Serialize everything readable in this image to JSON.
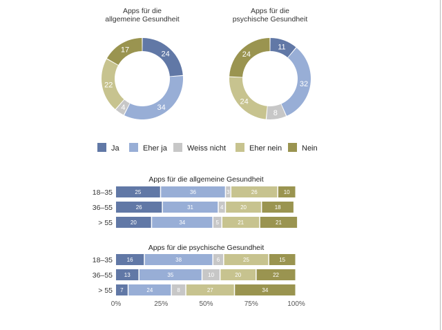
{
  "colors": {
    "Ja": "#6178a6",
    "Eher ja": "#98aed6",
    "Weiss nicht": "#c7c7c7",
    "Eher nein": "#c7c38f",
    "Nein": "#9a9450"
  },
  "chart_data": [
    {
      "type": "pie",
      "variant": "donut",
      "title": "Apps für die allgemeine Gesundheit",
      "title_lines": [
        "Apps für die",
        "allgemeine Gesundheit"
      ],
      "categories": [
        "Ja",
        "Eher ja",
        "Weiss nicht",
        "Eher nein",
        "Nein"
      ],
      "values": [
        24,
        34,
        4,
        22,
        17
      ]
    },
    {
      "type": "pie",
      "variant": "donut",
      "title": "Apps für die psychische Gesundheit",
      "title_lines": [
        "Apps für die",
        "psychische Gesundheit"
      ],
      "categories": [
        "Ja",
        "Eher ja",
        "Weiss nicht",
        "Eher nein",
        "Nein"
      ],
      "values": [
        11,
        32,
        8,
        24,
        24
      ]
    },
    {
      "type": "bar",
      "orientation": "horizontal",
      "stacked": "percent",
      "title": "Apps für die allgemeine Gesundheit",
      "categories": [
        "18–35",
        "36–55",
        "> 55"
      ],
      "series": [
        {
          "name": "Ja",
          "values": [
            25,
            26,
            20
          ]
        },
        {
          "name": "Eher ja",
          "values": [
            36,
            31,
            34
          ]
        },
        {
          "name": "Weiss nicht",
          "values": [
            3,
            4,
            5
          ]
        },
        {
          "name": "Eher nein",
          "values": [
            26,
            20,
            21
          ]
        },
        {
          "name": "Nein",
          "values": [
            10,
            18,
            21
          ]
        }
      ],
      "xlim": [
        0,
        100
      ],
      "xticks": [
        "0%",
        "25%",
        "50%",
        "75%",
        "100%"
      ]
    },
    {
      "type": "bar",
      "orientation": "horizontal",
      "stacked": "percent",
      "title": "Apps für die psychische Gesundheit",
      "categories": [
        "18–35",
        "36–55",
        "> 55"
      ],
      "series": [
        {
          "name": "Ja",
          "values": [
            16,
            13,
            7
          ]
        },
        {
          "name": "Eher ja",
          "values": [
            38,
            35,
            24
          ]
        },
        {
          "name": "Weiss nicht",
          "values": [
            6,
            10,
            8
          ]
        },
        {
          "name": "Eher nein",
          "values": [
            25,
            20,
            27
          ]
        },
        {
          "name": "Nein",
          "values": [
            15,
            22,
            34
          ]
        }
      ],
      "xlim": [
        0,
        100
      ],
      "xticks": [
        "0%",
        "25%",
        "50%",
        "75%",
        "100%"
      ]
    }
  ],
  "legend": [
    "Ja",
    "Eher ja",
    "Weiss nicht",
    "Eher nein",
    "Nein"
  ]
}
